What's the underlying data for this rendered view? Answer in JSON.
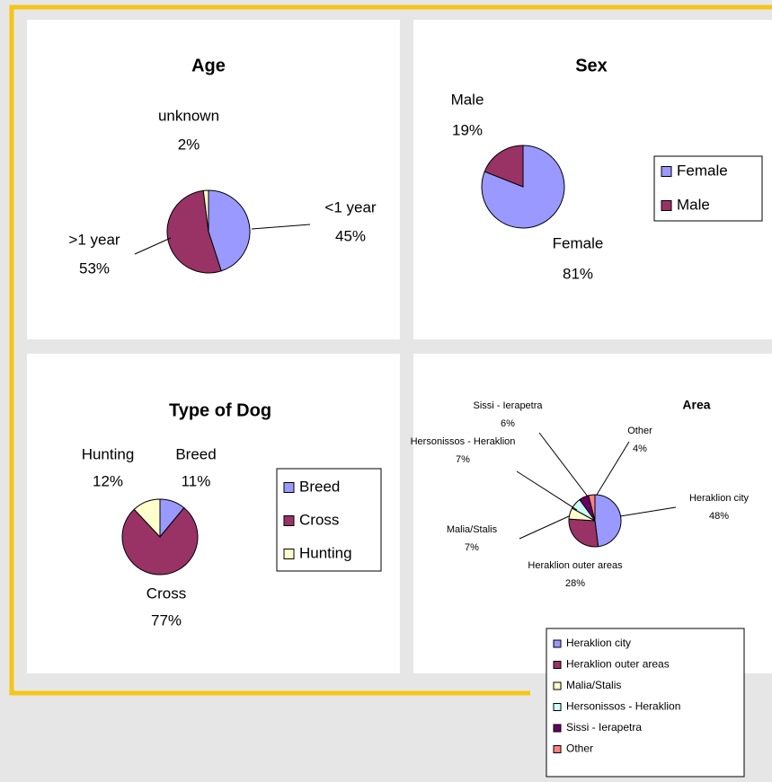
{
  "chart_data": [
    {
      "type": "pie",
      "title": "Age",
      "categories": [
        "<1 year",
        ">1 year",
        "unknown"
      ],
      "values": [
        45,
        53,
        2
      ],
      "value_labels": [
        "45%",
        "53%",
        "2%"
      ],
      "colors": [
        "#9999ff",
        "#993366",
        "#ffffcc"
      ],
      "legend": false
    },
    {
      "type": "pie",
      "title": "Sex",
      "categories": [
        "Female",
        "Male"
      ],
      "values": [
        81,
        19
      ],
      "value_labels": [
        "81%",
        "19%"
      ],
      "colors": [
        "#9999ff",
        "#993366"
      ],
      "legend": true
    },
    {
      "type": "pie",
      "title": "Type of Dog",
      "categories": [
        "Breed",
        "Cross",
        "Hunting"
      ],
      "values": [
        11,
        77,
        12
      ],
      "value_labels": [
        "11%",
        "77%",
        "12%"
      ],
      "colors": [
        "#9999ff",
        "#993366",
        "#ffffcc"
      ],
      "legend": true
    },
    {
      "type": "pie",
      "title": "Area",
      "categories": [
        "Heraklion city",
        "Heraklion outer areas",
        "Malia/Stalis",
        "Hersonissos - Heraklion",
        "Sissi - Ierapetra",
        "Other"
      ],
      "values": [
        48,
        28,
        7,
        7,
        6,
        4
      ],
      "value_labels": [
        "48%",
        "28%",
        "7%",
        "7%",
        "6%",
        "4%"
      ],
      "colors": [
        "#9999ff",
        "#993366",
        "#ffffcc",
        "#ccffff",
        "#660066",
        "#ff8080"
      ],
      "legend": true
    }
  ]
}
